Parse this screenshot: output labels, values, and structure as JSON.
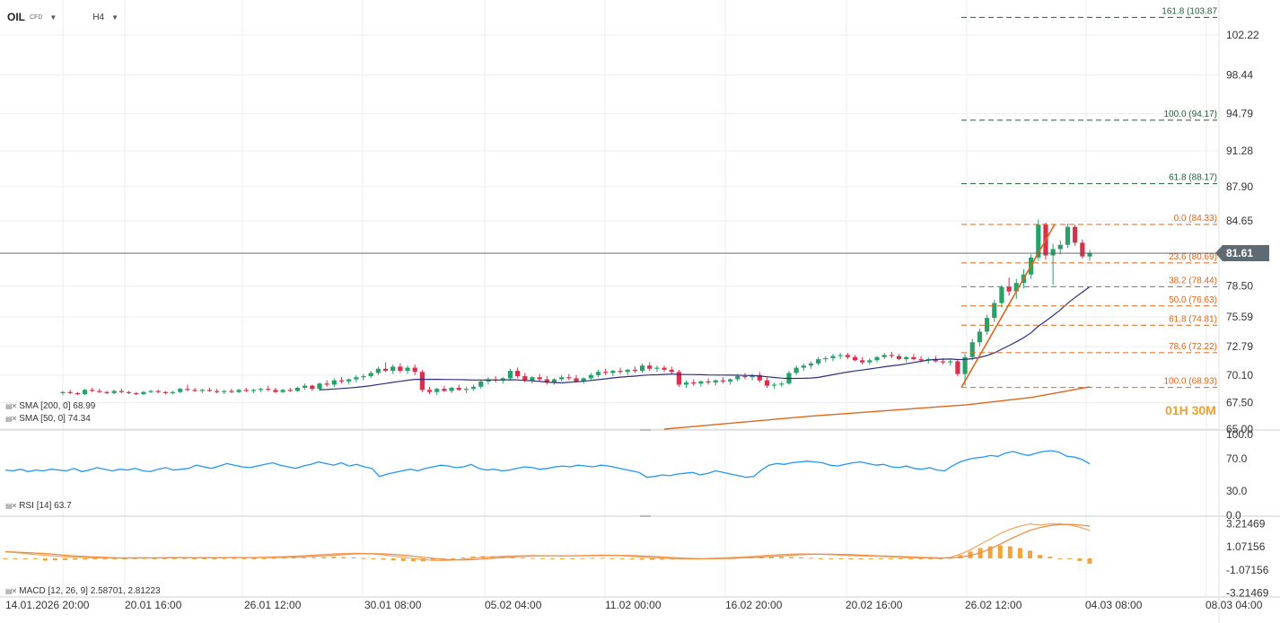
{
  "header": {
    "symbol": "OIL",
    "type": "CFD",
    "timeframe": "H4",
    "dropdown_icon": "chevron-down-icon"
  },
  "price_axis": {
    "labels": [
      "102.22",
      "98.44",
      "94.79",
      "91.28",
      "87.90",
      "84.65",
      "81.61",
      "78.50",
      "75.59",
      "72.79",
      "70.10",
      "67.50",
      "65.00"
    ],
    "current": "81.61"
  },
  "rsi_axis": [
    "100.0",
    "70.0",
    "30.0",
    "0.0"
  ],
  "macd_axis": [
    "3.21469",
    "1.07156",
    "-1.07156",
    "-3.21469"
  ],
  "time_axis": [
    "14.01.2026  20:00",
    "20.01  16:00",
    "26.01  12:00",
    "30.01  08:00",
    "05.02  04:00",
    "11.02  00:00",
    "16.02  20:00",
    "20.02  16:00",
    "26.02  12:00",
    "04.03  08:00",
    "08.03  04:00"
  ],
  "fib_levels": [
    {
      "label": "161.8 (103.87",
      "price": 103.87,
      "color": "#1e5e3a"
    },
    {
      "label": "100.0 (94.17)",
      "price": 94.17,
      "color": "#1e5e3a"
    },
    {
      "label": "61.8 (88.17)",
      "price": 88.17,
      "color": "#1e5e3a"
    },
    {
      "label": "0.0 (84.33)",
      "price": 84.33,
      "color": "#e0651a"
    },
    {
      "label": "23.6 (80.69)",
      "price": 80.69,
      "color": "#e0651a"
    },
    {
      "label": "38.2 (78.44)",
      "price": 78.44,
      "color": "#e0651a"
    },
    {
      "label": "50.0 (76.63)",
      "price": 76.63,
      "color": "#e0651a"
    },
    {
      "label": "61.8 (74.81)",
      "price": 74.81,
      "color": "#e0651a"
    },
    {
      "label": "78.6 (72.22)",
      "price": 72.22,
      "color": "#e0651a"
    },
    {
      "label": "100.0 (68.93)",
      "price": 68.93,
      "color": "#e0651a"
    }
  ],
  "legend": {
    "sma200": "SMA [200, 0] 68.99",
    "sma50": "SMA [50, 0] 74.34",
    "rsi": "RSI [14] 63.7",
    "macd": "MACD [12, 26, 9] 2.58701,  2.81223"
  },
  "timeframe_watermark": "01H 30M",
  "colors": {
    "up": "#26a269",
    "down": "#d8314b",
    "sma50": "#2e2f7a",
    "sma200": "#e0651a",
    "rsi": "#2196f3",
    "macd": "#f08a3c",
    "signal": "#f4a460",
    "hist": "#f3a33c",
    "grid": "#eeeeee"
  },
  "chart_data": {
    "type": "candlestick",
    "title": "OIL CFD H4",
    "y_range": [
      65.0,
      104.5
    ],
    "candles": [
      [
        68.4,
        68.6,
        68.2,
        68.5
      ],
      [
        68.5,
        68.7,
        68.3,
        68.4
      ],
      [
        68.4,
        68.5,
        68.2,
        68.3
      ],
      [
        68.3,
        68.8,
        68.2,
        68.7
      ],
      [
        68.7,
        68.9,
        68.5,
        68.6
      ],
      [
        68.6,
        68.8,
        68.4,
        68.5
      ],
      [
        68.5,
        68.6,
        68.3,
        68.4
      ],
      [
        68.4,
        68.7,
        68.3,
        68.6
      ],
      [
        68.6,
        68.8,
        68.4,
        68.5
      ],
      [
        68.5,
        68.6,
        68.3,
        68.4
      ],
      [
        68.4,
        68.5,
        68.2,
        68.3
      ],
      [
        68.3,
        68.6,
        68.2,
        68.5
      ],
      [
        68.5,
        68.7,
        68.4,
        68.6
      ],
      [
        68.6,
        68.7,
        68.4,
        68.5
      ],
      [
        68.5,
        68.6,
        68.3,
        68.4
      ],
      [
        68.4,
        68.6,
        68.3,
        68.5
      ],
      [
        68.5,
        68.9,
        68.4,
        68.8
      ],
      [
        68.8,
        69.2,
        68.6,
        68.7
      ],
      [
        68.7,
        68.9,
        68.5,
        68.6
      ],
      [
        68.6,
        68.8,
        68.4,
        68.7
      ],
      [
        68.7,
        68.9,
        68.5,
        68.6
      ],
      [
        68.6,
        68.8,
        68.4,
        68.5
      ],
      [
        68.5,
        68.7,
        68.3,
        68.6
      ],
      [
        68.6,
        68.8,
        68.4,
        68.5
      ],
      [
        68.5,
        68.8,
        68.4,
        68.7
      ],
      [
        68.7,
        68.9,
        68.5,
        68.6
      ],
      [
        68.6,
        68.8,
        68.4,
        68.7
      ],
      [
        68.7,
        68.9,
        68.5,
        68.8
      ],
      [
        68.8,
        69.1,
        68.6,
        68.7
      ],
      [
        68.7,
        68.9,
        68.4,
        68.5
      ],
      [
        68.5,
        68.8,
        68.4,
        68.7
      ],
      [
        68.7,
        68.9,
        68.5,
        68.6
      ],
      [
        68.6,
        69.0,
        68.5,
        68.9
      ],
      [
        68.9,
        69.3,
        68.7,
        69.1
      ],
      [
        69.1,
        69.2,
        68.6,
        68.8
      ],
      [
        68.8,
        69.4,
        68.6,
        69.3
      ],
      [
        69.3,
        69.6,
        69.0,
        69.2
      ],
      [
        69.2,
        69.8,
        69.0,
        69.6
      ],
      [
        69.6,
        69.9,
        69.3,
        69.5
      ],
      [
        69.5,
        69.8,
        69.2,
        69.7
      ],
      [
        69.7,
        70.1,
        69.4,
        69.9
      ],
      [
        69.9,
        70.2,
        69.6,
        70.0
      ],
      [
        70.0,
        70.5,
        69.8,
        70.3
      ],
      [
        70.3,
        70.9,
        70.1,
        70.7
      ],
      [
        70.7,
        71.3,
        70.4,
        70.5
      ],
      [
        70.5,
        71.1,
        70.2,
        70.9
      ],
      [
        70.9,
        71.2,
        70.3,
        70.5
      ],
      [
        70.5,
        71.0,
        70.2,
        70.8
      ],
      [
        70.8,
        71.1,
        70.1,
        70.4
      ],
      [
        70.4,
        70.6,
        68.5,
        68.7
      ],
      [
        68.7,
        69.0,
        68.3,
        68.5
      ],
      [
        68.5,
        68.9,
        68.2,
        68.8
      ],
      [
        68.8,
        69.1,
        68.5,
        68.6
      ],
      [
        68.6,
        69.0,
        68.4,
        68.9
      ],
      [
        68.9,
        69.2,
        68.6,
        68.7
      ],
      [
        68.7,
        69.0,
        68.4,
        68.8
      ],
      [
        68.8,
        69.2,
        68.6,
        69.0
      ],
      [
        69.0,
        69.6,
        68.8,
        69.5
      ],
      [
        69.5,
        69.9,
        69.2,
        69.7
      ],
      [
        69.7,
        70.0,
        69.4,
        69.6
      ],
      [
        69.6,
        69.9,
        69.3,
        69.8
      ],
      [
        69.8,
        70.7,
        69.6,
        70.5
      ],
      [
        70.5,
        70.8,
        69.8,
        70.0
      ],
      [
        70.0,
        70.3,
        69.4,
        69.6
      ],
      [
        69.6,
        70.0,
        69.3,
        69.9
      ],
      [
        69.9,
        70.2,
        69.5,
        69.7
      ],
      [
        69.7,
        70.0,
        69.2,
        69.4
      ],
      [
        69.4,
        69.8,
        69.2,
        69.7
      ],
      [
        69.7,
        70.1,
        69.5,
        69.9
      ],
      [
        69.9,
        70.2,
        69.6,
        69.8
      ],
      [
        69.8,
        70.1,
        69.4,
        69.5
      ],
      [
        69.5,
        69.9,
        69.3,
        69.8
      ],
      [
        69.8,
        70.3,
        69.6,
        70.1
      ],
      [
        70.1,
        70.6,
        69.9,
        70.4
      ],
      [
        70.4,
        70.7,
        70.1,
        70.3
      ],
      [
        70.3,
        70.6,
        70.0,
        70.5
      ],
      [
        70.5,
        70.8,
        70.2,
        70.4
      ],
      [
        70.4,
        70.7,
        70.1,
        70.6
      ],
      [
        70.6,
        70.9,
        70.3,
        70.5
      ],
      [
        70.5,
        71.2,
        70.3,
        71.0
      ],
      [
        71.0,
        71.3,
        70.5,
        70.7
      ],
      [
        70.7,
        71.0,
        70.4,
        70.8
      ],
      [
        70.8,
        71.0,
        70.4,
        70.6
      ],
      [
        70.6,
        70.9,
        70.2,
        70.4
      ],
      [
        70.4,
        70.6,
        69.0,
        69.2
      ],
      [
        69.2,
        69.6,
        68.9,
        69.4
      ],
      [
        69.4,
        69.7,
        69.1,
        69.3
      ],
      [
        69.3,
        69.6,
        69.0,
        69.5
      ],
      [
        69.5,
        69.8,
        69.2,
        69.4
      ],
      [
        69.4,
        69.7,
        69.1,
        69.6
      ],
      [
        69.6,
        69.9,
        69.3,
        69.5
      ],
      [
        69.5,
        69.8,
        69.2,
        69.7
      ],
      [
        69.7,
        70.2,
        69.5,
        70.0
      ],
      [
        70.0,
        70.3,
        69.7,
        69.9
      ],
      [
        69.9,
        70.2,
        69.6,
        70.1
      ],
      [
        70.1,
        70.4,
        69.4,
        69.6
      ],
      [
        69.6,
        69.9,
        68.9,
        69.1
      ],
      [
        69.1,
        69.4,
        68.8,
        69.2
      ],
      [
        69.2,
        69.5,
        69.0,
        69.3
      ],
      [
        69.3,
        70.5,
        69.2,
        70.3
      ],
      [
        70.3,
        71.0,
        70.1,
        70.8
      ],
      [
        70.8,
        71.2,
        70.5,
        71.0
      ],
      [
        71.0,
        71.4,
        70.7,
        71.2
      ],
      [
        71.2,
        71.8,
        71.0,
        71.6
      ],
      [
        71.6,
        71.9,
        71.3,
        71.7
      ],
      [
        71.7,
        72.1,
        71.4,
        71.9
      ],
      [
        71.9,
        72.2,
        71.6,
        72.0
      ],
      [
        72.0,
        72.2,
        71.6,
        71.8
      ],
      [
        71.8,
        72.0,
        71.4,
        71.5
      ],
      [
        71.5,
        71.8,
        71.1,
        71.3
      ],
      [
        71.3,
        71.7,
        71.1,
        71.5
      ],
      [
        71.5,
        71.9,
        71.3,
        71.8
      ],
      [
        71.8,
        72.2,
        71.6,
        72.0
      ],
      [
        72.0,
        72.3,
        71.7,
        71.9
      ],
      [
        71.9,
        72.1,
        71.5,
        71.6
      ],
      [
        71.6,
        71.9,
        71.3,
        71.8
      ],
      [
        71.8,
        72.1,
        71.5,
        71.6
      ],
      [
        71.6,
        71.9,
        71.3,
        71.5
      ],
      [
        71.5,
        71.8,
        71.2,
        71.6
      ],
      [
        71.6,
        71.9,
        71.3,
        71.4
      ],
      [
        71.4,
        71.7,
        71.1,
        71.3
      ],
      [
        71.3,
        71.6,
        71.0,
        71.4
      ],
      [
        71.4,
        71.6,
        70.0,
        70.2
      ],
      [
        70.2,
        72.1,
        69.1,
        71.8
      ],
      [
        71.8,
        73.5,
        71.5,
        73.2
      ],
      [
        73.2,
        74.5,
        72.8,
        74.2
      ],
      [
        74.2,
        75.8,
        73.9,
        75.5
      ],
      [
        75.5,
        77.2,
        75.1,
        76.9
      ],
      [
        76.9,
        78.6,
        76.5,
        78.4
      ],
      [
        78.4,
        79.3,
        77.6,
        78.0
      ],
      [
        78.0,
        79.2,
        77.3,
        78.8
      ],
      [
        78.8,
        80.1,
        78.3,
        79.6
      ],
      [
        79.6,
        81.5,
        79.2,
        81.2
      ],
      [
        81.2,
        84.8,
        80.9,
        84.3
      ],
      [
        84.3,
        84.5,
        81.0,
        81.4
      ],
      [
        81.4,
        82.5,
        78.6,
        82.0
      ],
      [
        82.0,
        82.8,
        81.5,
        82.4
      ],
      [
        82.4,
        84.4,
        82.1,
        84.1
      ],
      [
        84.1,
        84.3,
        82.3,
        82.6
      ],
      [
        82.6,
        82.9,
        81.1,
        81.3
      ],
      [
        81.3,
        81.9,
        80.9,
        81.6
      ]
    ],
    "sma50_label": "SMA [50, 0] 74.34",
    "sma200_label": "SMA [200, 0] 68.99",
    "fibonacci_anchor": {
      "from": 68.93,
      "to": 84.33
    },
    "rsi_series": [
      56,
      55,
      57,
      54,
      56,
      55,
      57,
      56,
      55,
      58,
      54,
      56,
      59,
      57,
      55,
      57,
      56,
      58,
      55,
      54,
      57,
      59,
      56,
      57,
      58,
      62,
      60,
      58,
      61,
      64,
      62,
      60,
      59,
      61,
      63,
      65,
      62,
      60,
      58,
      61,
      63,
      66,
      64,
      62,
      65,
      61,
      63,
      60,
      58,
      48,
      51,
      53,
      55,
      57,
      55,
      58,
      60,
      62,
      61,
      59,
      60,
      63,
      58,
      56,
      57,
      55,
      56,
      58,
      60,
      59,
      57,
      58,
      60,
      61,
      60,
      62,
      61,
      60,
      62,
      61,
      59,
      57,
      55,
      53,
      47,
      48,
      50,
      49,
      51,
      52,
      53,
      50,
      52,
      55,
      53,
      51,
      49,
      47,
      48,
      56,
      62,
      64,
      63,
      65,
      66,
      67,
      66,
      65,
      62,
      61,
      63,
      65,
      66,
      64,
      62,
      63,
      60,
      59,
      61,
      58,
      57,
      59,
      56,
      55,
      61,
      66,
      69,
      71,
      72,
      74,
      73,
      77,
      79,
      76,
      74,
      77,
      79,
      80,
      78,
      73,
      72,
      69,
      63.7
    ],
    "macd_series": [
      0.62,
      0.55,
      0.45,
      0.36,
      0.28,
      0.22,
      0.16,
      0.12,
      0.08,
      0.05,
      0.03,
      0.02,
      0.03,
      0.05,
      0.06,
      0.04,
      0.06,
      0.08,
      0.07,
      0.06,
      0.05,
      0.06,
      0.08,
      0.09,
      0.07,
      0.08,
      0.1,
      0.13,
      0.16,
      0.2,
      0.24,
      0.3,
      0.36,
      0.42,
      0.45,
      0.47,
      0.46,
      0.4,
      0.32,
      0.22,
      0.1,
      -0.02,
      -0.12,
      -0.18,
      -0.2,
      -0.16,
      -0.08,
      0.02,
      0.1,
      0.16,
      0.2,
      0.22,
      0.24,
      0.25,
      0.24,
      0.23,
      0.22,
      0.24,
      0.26,
      0.28,
      0.3,
      0.28,
      0.24,
      0.18,
      0.12,
      0.06,
      0.02,
      -0.02,
      -0.05,
      -0.06,
      -0.04,
      0.0,
      0.04,
      0.08,
      0.12,
      0.18,
      0.24,
      0.3,
      0.36,
      0.4,
      0.42,
      0.41,
      0.38,
      0.34,
      0.3,
      0.26,
      0.22,
      0.2,
      0.18,
      0.14,
      0.1,
      0.06,
      0.04,
      0.02,
      0.0,
      0.1,
      0.4,
      0.8,
      1.3,
      1.8,
      2.3,
      2.7,
      3.0,
      3.2,
      3.1,
      3.2,
      3.21,
      3.1,
      2.9,
      2.58701
    ]
  }
}
